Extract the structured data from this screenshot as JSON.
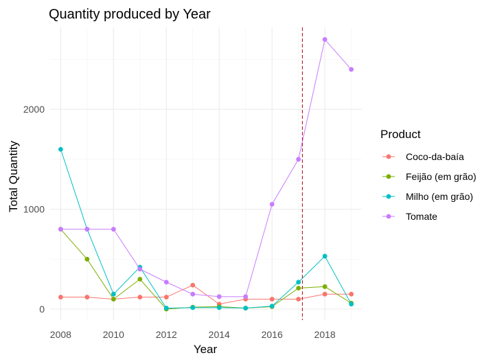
{
  "chart_data": {
    "type": "line",
    "title": "Quantity produced by Year",
    "xlabel": "Year",
    "ylabel": "Total Quantity",
    "xlim": [
      2007.6,
      2019.4
    ],
    "ylim": [
      -110,
      2820
    ],
    "x_ticks": [
      2008,
      2010,
      2012,
      2014,
      2016,
      2018
    ],
    "y_ticks": [
      0,
      1000,
      2000
    ],
    "grid": true,
    "legend": {
      "title": "Product",
      "position": "right"
    },
    "reference_line": {
      "x": 2017.15,
      "color": "#b2182b",
      "style": "dashed"
    },
    "x": [
      2008,
      2009,
      2010,
      2011,
      2012,
      2013,
      2014,
      2015,
      2016,
      2017,
      2018,
      2019
    ],
    "series": [
      {
        "name": "Coco-da-baía",
        "color": "#F8766D",
        "values": [
          120,
          120,
          100,
          120,
          120,
          240,
          50,
          100,
          100,
          100,
          150,
          150
        ]
      },
      {
        "name": "Feijão (em grão)",
        "color": "#7CAE00",
        "values": [
          800,
          500,
          100,
          300,
          0,
          20,
          25,
          10,
          25,
          210,
          225,
          60
        ]
      },
      {
        "name": "Milho (em grão)",
        "color": "#00BFC4",
        "values": [
          1600,
          800,
          150,
          420,
          10,
          15,
          15,
          10,
          30,
          270,
          530,
          50
        ]
      },
      {
        "name": "Tomate",
        "color": "#C77CFF",
        "values": [
          800,
          800,
          800,
          400,
          270,
          150,
          125,
          125,
          1050,
          1500,
          2700,
          2400
        ]
      }
    ]
  }
}
